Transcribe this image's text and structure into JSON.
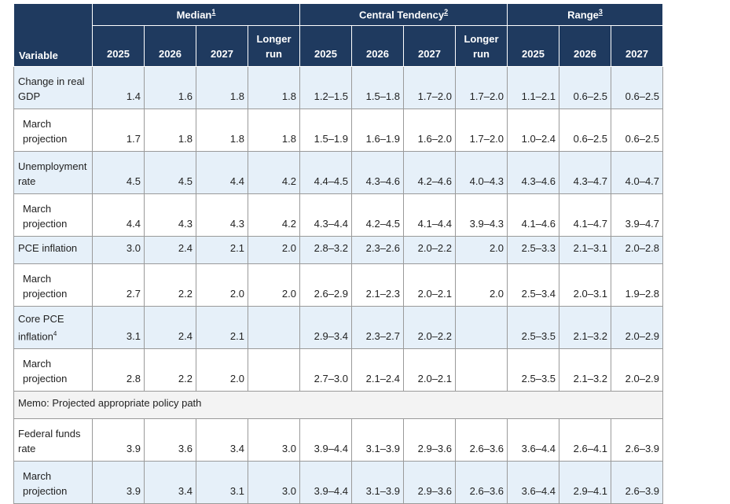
{
  "groups": {
    "median": "Median",
    "median_note": "1",
    "central": "Central Tendency",
    "central_note": "2",
    "range": "Range",
    "range_note": "3"
  },
  "variable_header": "Variable",
  "years": {
    "y2025": "2025",
    "y2026": "2026",
    "y2027": "2027",
    "longer_run_1": "Longer",
    "longer_run_2": "run"
  },
  "rows": [
    {
      "label1": "Change in real",
      "label2": "GDP",
      "cells": [
        "1.4",
        "1.6",
        "1.8",
        "1.8",
        "1.2–1.5",
        "1.5–1.8",
        "1.7–2.0",
        "1.7–2.0",
        "1.1–2.1",
        "0.6–2.5",
        "0.6–2.5"
      ]
    },
    {
      "label1": "March",
      "label2": "projection",
      "cells": [
        "1.7",
        "1.8",
        "1.8",
        "1.8",
        "1.5–1.9",
        "1.6–1.9",
        "1.6–2.0",
        "1.7–2.0",
        "1.0–2.4",
        "0.6–2.5",
        "0.6–2.5"
      ]
    },
    {
      "label1": "Unemployment",
      "label2": "rate",
      "cells": [
        "4.5",
        "4.5",
        "4.4",
        "4.2",
        "4.4–4.5",
        "4.3–4.6",
        "4.2–4.6",
        "4.0–4.3",
        "4.3–4.6",
        "4.3–4.7",
        "4.0–4.7"
      ]
    },
    {
      "label1": "March",
      "label2": "projection",
      "cells": [
        "4.4",
        "4.3",
        "4.3",
        "4.2",
        "4.3–4.4",
        "4.2–4.5",
        "4.1–4.4",
        "3.9–4.3",
        "4.1–4.6",
        "4.1–4.7",
        "3.9–4.7"
      ]
    },
    {
      "label1": "PCE inflation",
      "cells": [
        "3.0",
        "2.4",
        "2.1",
        "2.0",
        "2.8–3.2",
        "2.3–2.6",
        "2.0–2.2",
        "2.0",
        "2.5–3.3",
        "2.1–3.1",
        "2.0–2.8"
      ]
    },
    {
      "label1": "March",
      "label2": "projection",
      "cells": [
        "2.7",
        "2.2",
        "2.0",
        "2.0",
        "2.6–2.9",
        "2.1–2.3",
        "2.0–2.1",
        "2.0",
        "2.5–3.4",
        "2.0–3.1",
        "1.9–2.8"
      ]
    },
    {
      "label1": "Core PCE",
      "label2": "inflation",
      "note": "4",
      "cells": [
        "3.1",
        "2.4",
        "2.1",
        "",
        "2.9–3.4",
        "2.3–2.7",
        "2.0–2.2",
        "",
        "2.5–3.5",
        "2.1–3.2",
        "2.0–2.9"
      ]
    },
    {
      "label1": "March",
      "label2": "projection",
      "cells": [
        "2.8",
        "2.2",
        "2.0",
        "",
        "2.7–3.0",
        "2.1–2.4",
        "2.0–2.1",
        "",
        "2.5–3.5",
        "2.1–3.2",
        "2.0–2.9"
      ]
    },
    {
      "memo": "Memo: Projected appropriate policy path"
    },
    {
      "label1": "Federal funds",
      "label2": "rate",
      "cells": [
        "3.9",
        "3.6",
        "3.4",
        "3.0",
        "3.9–4.4",
        "3.1–3.9",
        "2.9–3.6",
        "2.6–3.6",
        "3.6–4.4",
        "2.6–4.1",
        "2.6–3.9"
      ]
    },
    {
      "label1": "March",
      "label2": "projection",
      "cells": [
        "3.9",
        "3.4",
        "3.1",
        "3.0",
        "3.9–4.4",
        "3.1–3.9",
        "2.9–3.6",
        "2.6–3.6",
        "3.6–4.4",
        "2.9–4.1",
        "2.6–3.9"
      ]
    }
  ]
}
